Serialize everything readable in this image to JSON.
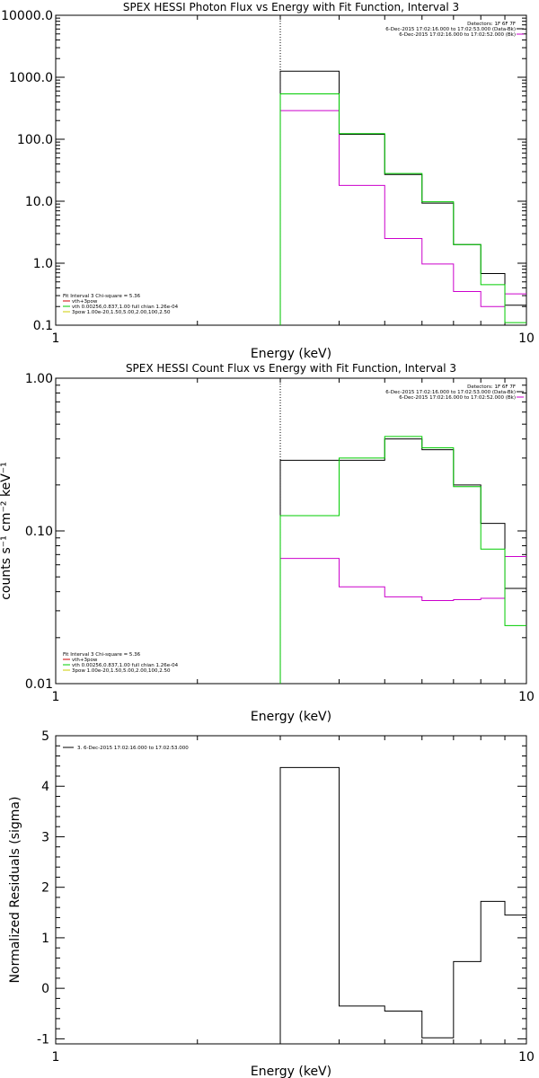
{
  "chart_data": [
    {
      "type": "line",
      "title": "SPEX HESSI Photon Flux vs Energy with Fit Function, Interval 3",
      "xlabel": "Energy (keV)",
      "ylabel": "",
      "xscale": "log",
      "yscale": "log",
      "xlim": [
        1,
        10
      ],
      "ylim": [
        0.1,
        10000
      ],
      "xtick_labels": [
        "1",
        "10"
      ],
      "ytick_labels": [
        "0.1",
        "1.0",
        "10.0",
        "100.0",
        "1000.0",
        "10000.0"
      ],
      "vline_x": 3,
      "detectors": "Detectors: 1F 6F 7F",
      "legend_right": [
        {
          "label": "6-Dec-2015 17:02:16.000 to 17:02:53.000 (Data-Bk)",
          "color": "#000000"
        },
        {
          "label": "6-Dec-2015 17:02:16.000 to 17:02:52.000 (Bk)",
          "color": "#cc00cc"
        }
      ],
      "fit_header": "Fit Interval 3   Chi-square = 5.36",
      "legend_left": [
        {
          "label": "vth+3pow",
          "color": "#cc0000"
        },
        {
          "label": "vth 0.00256,0.837,1.00  full chian 1.26e-04",
          "color": "#00cc00"
        },
        {
          "label": "3pow 1.00e-20,1.50,5.00,2.00,100,2.50",
          "color": "#cccc00"
        }
      ],
      "series": [
        {
          "color": "#000000",
          "edges": [
            3,
            4,
            5,
            6,
            7,
            8,
            9,
            10
          ],
          "values": [
            1250,
            120,
            27,
            9.3,
            2.0,
            0.68,
            0.21
          ]
        },
        {
          "color": "#cc00cc",
          "edges": [
            3,
            4,
            5,
            6,
            7,
            8,
            9,
            10
          ],
          "values": [
            290,
            18,
            2.5,
            0.97,
            0.35,
            0.2,
            0.32
          ]
        },
        {
          "color": "#00cc00",
          "edges": [
            3,
            4,
            5,
            6,
            7,
            8,
            9,
            10
          ],
          "values": [
            540,
            123,
            28,
            9.8,
            2.0,
            0.45,
            0.11
          ]
        }
      ]
    },
    {
      "type": "line",
      "title": "SPEX HESSI Count Flux vs Energy with Fit Function, Interval 3",
      "xlabel": "Energy (keV)",
      "ylabel": "counts s⁻¹ cm⁻² keV⁻¹",
      "xscale": "log",
      "yscale": "log",
      "xlim": [
        1,
        10
      ],
      "ylim": [
        0.01,
        1
      ],
      "xtick_labels": [
        "1",
        "10"
      ],
      "ytick_labels": [
        "0.01",
        "0.10",
        "1.00"
      ],
      "vline_x": 3,
      "detectors": "Detectors: 1F 6F 7F",
      "legend_right": [
        {
          "label": "6-Dec-2015 17:02:16.000 to 17:02:53.000 (Data-Bk)",
          "color": "#000000"
        },
        {
          "label": "6-Dec-2015 17:02:16.000 to 17:02:52.000 (Bk)",
          "color": "#cc00cc"
        }
      ],
      "fit_header": "Fit Interval 3   Chi-square = 5.36",
      "legend_left": [
        {
          "label": "vth+3pow",
          "color": "#cc0000"
        },
        {
          "label": "vth 0.00256,0.837,1.00  full chian 1.26e-04",
          "color": "#00cc00"
        },
        {
          "label": "3pow 1.00e-20,1.50,5.00,2.00,100,2.50",
          "color": "#cccc00"
        }
      ],
      "series": [
        {
          "color": "#000000",
          "edges": [
            3,
            4,
            5,
            6,
            7,
            8,
            9,
            10
          ],
          "values": [
            0.29,
            0.29,
            0.4,
            0.34,
            0.2,
            0.112,
            0.042
          ]
        },
        {
          "color": "#cc00cc",
          "edges": [
            3,
            4,
            5,
            6,
            7,
            8,
            9,
            10
          ],
          "values": [
            0.066,
            0.043,
            0.037,
            0.035,
            0.0355,
            0.0362,
            0.068
          ]
        },
        {
          "color": "#00cc00",
          "edges": [
            3,
            4,
            5,
            6,
            7,
            8,
            9,
            10
          ],
          "values": [
            0.126,
            0.3,
            0.415,
            0.35,
            0.195,
            0.076,
            0.024
          ]
        }
      ]
    },
    {
      "type": "line",
      "title": "",
      "xlabel": "Energy (keV)",
      "ylabel": "Normalized Residuals (sigma)",
      "xscale": "log",
      "yscale": "linear",
      "xlim": [
        1,
        10
      ],
      "ylim": [
        -1.1,
        5
      ],
      "xtick_labels": [
        "1",
        "10"
      ],
      "ytick_labels": [
        "-1",
        "0",
        "1",
        "2",
        "3",
        "4",
        "5"
      ],
      "legend_left": [
        {
          "label": "3.  6-Dec-2015 17:02:16.000 to 17:02:53.000",
          "color": "#000000"
        }
      ],
      "series": [
        {
          "color": "#000000",
          "edges": [
            3,
            4,
            5,
            6,
            7,
            8,
            9,
            10
          ],
          "values": [
            4.37,
            -0.35,
            -0.45,
            -0.98,
            0.53,
            1.72,
            1.45
          ]
        }
      ]
    }
  ]
}
